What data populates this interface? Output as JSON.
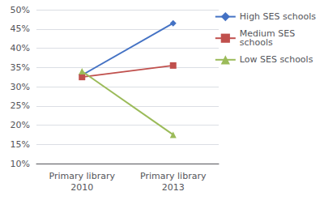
{
  "chart_data": {
    "type": "line",
    "categories": [
      "Primary library\n2010",
      "Primary library\n2013"
    ],
    "series": [
      {
        "name": "High SES schools",
        "color": "#4472C4",
        "marker": "diamond",
        "values": [
          0.33,
          0.465
        ]
      },
      {
        "name": "Medium SES\nschools",
        "color": "#C0504D",
        "marker": "square",
        "values": [
          0.325,
          0.355
        ]
      },
      {
        "name": "Low SES schools",
        "color": "#9BBB59",
        "marker": "triangle",
        "values": [
          0.34,
          0.175
        ]
      }
    ],
    "ylim": [
      0.1,
      0.5
    ],
    "yticks": [
      {
        "value": 0.1,
        "label": "10%"
      },
      {
        "value": 0.15,
        "label": "15%"
      },
      {
        "value": 0.2,
        "label": "20%"
      },
      {
        "value": 0.25,
        "label": "25%"
      },
      {
        "value": 0.3,
        "label": "30%"
      },
      {
        "value": 0.35,
        "label": "35%"
      },
      {
        "value": 0.4,
        "label": "40%"
      },
      {
        "value": 0.45,
        "label": "45%"
      },
      {
        "value": 0.5,
        "label": "50%"
      }
    ],
    "grid": true,
    "legend": "right"
  }
}
